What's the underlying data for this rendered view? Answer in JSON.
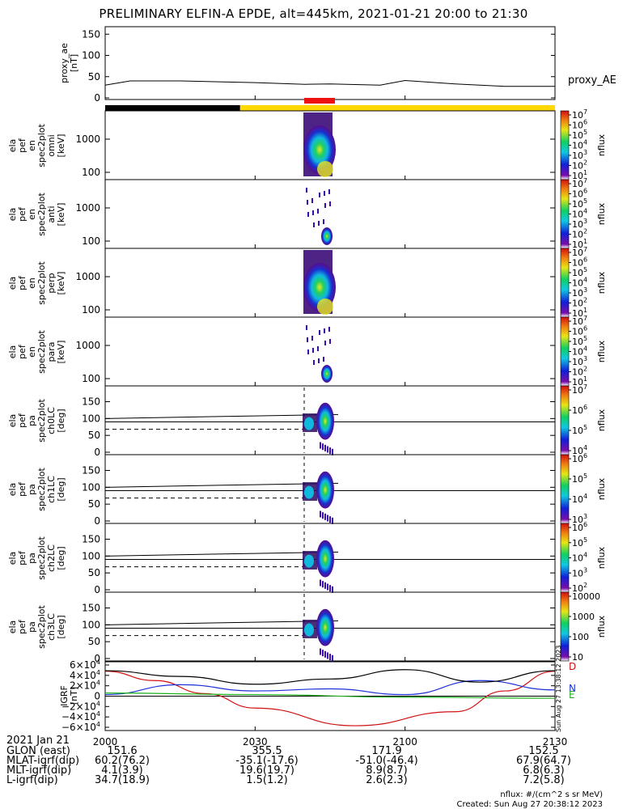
{
  "title": "PRELIMINARY ELFIN-A EPDE, alt=445km, 2021-01-21 20:00 to 21:30",
  "colors": {
    "black": "#000000",
    "yellow_bar": "#ffd800",
    "red_bar": "#ee1111",
    "b_D": "#d01010",
    "b_N": "#1c30d8",
    "b_E": "#1bb21b"
  },
  "panels": {
    "proxy_ae": {
      "ylabel": "proxy_ae\n[nT]",
      "legend": "proxy_AE",
      "yticks": [
        "150",
        "100",
        "50",
        "0"
      ]
    },
    "energy_labels": [
      "ela\npef\nen\nspec2plot\nomni\n[keV]",
      "ela\npef\nen\nspec2plot\nanti\n[keV]",
      "ela\npef\nen\nspec2plot\nperp\n[keV]",
      "ela\npef\nen\nspec2plot\npara\n[keV]"
    ],
    "energy_yticks": [
      "1000",
      "100"
    ],
    "pa_labels": [
      "ela\npef\npa\nspec2plot\nch0LC\n[deg]",
      "ela\npef\npa\nspec2plot\nch1LC\n[deg]",
      "ela\npef\npa\nspec2plot\nch2LC\n[deg]",
      "ela\npef\npa\nspec2plot\nch3LC\n[deg]"
    ],
    "pa_yticks": [
      "150",
      "100",
      "50",
      "0"
    ],
    "colorbar_label": "nflux",
    "colorbar_ticks": [
      [
        "10^7",
        "10^6",
        "10^5",
        "10^4",
        "10^3",
        "10^2",
        "10^1"
      ],
      [
        "10^7",
        "10^6",
        "10^5",
        "10^4",
        "10^3",
        "10^2",
        "10^1"
      ],
      [
        "10^7",
        "10^6",
        "10^5",
        "10^4",
        "10^3",
        "10^2",
        "10^1"
      ],
      [
        "10^7",
        "10^6",
        "10^5",
        "10^4",
        "10^3",
        "10^2",
        "10^1"
      ],
      [
        "10^7",
        "10^6",
        "10^5",
        "10^4"
      ],
      [
        "10^6",
        "10^5",
        "10^4",
        "10^3"
      ],
      [
        "10^6",
        "10^5",
        "10^4",
        "10^3",
        "10^2"
      ],
      [
        "10000",
        "1000",
        "100",
        "10"
      ]
    ],
    "igrf": {
      "ylabel": "IGRF\n[nT]",
      "yticks": [
        "6×10^4",
        "4×10^4",
        "2×10^4",
        "0",
        "−2×10^4",
        "−4×10^4",
        "−6×10^4"
      ],
      "components": [
        "D",
        "N",
        "E"
      ]
    }
  },
  "xaxis": {
    "date_label": "2021 Jan 21",
    "ticks": [
      "2000",
      "2030",
      "2100",
      "2130"
    ]
  },
  "ephemeris": {
    "row_labels": [
      "GLON (east)",
      "MLAT-igrf(dip)",
      "MLT-igrf(dip)",
      "L-igrf(dip)"
    ],
    "columns": [
      [
        "151.6",
        "60.2(76.2)",
        "4.1(3.9)",
        "34.7(18.9)"
      ],
      [
        "355.5",
        "-35.1(-17.6)",
        "19.6(19.7)",
        "1.5(1.2)"
      ],
      [
        "171.9",
        "-51.0(-46.4)",
        "8.9(8.7)",
        "2.6(2.3)"
      ],
      [
        "152.5",
        "67.9(64.7)",
        "6.8(6.3)",
        "7.2(5.8)"
      ]
    ]
  },
  "footer": {
    "units": "nflux: #/(cm^2 s sr MeV)",
    "created": "Created: Sun Aug 27 20:38:12 2023",
    "side_stamp": "Sun Aug 27 13:38:12 2023"
  },
  "chart_data": {
    "type": "line",
    "title": "PRELIMINARY ELFIN-A EPDE, alt=445km, 2021-01-21 20:00 to 21:30",
    "x_range": [
      "20:00",
      "21:30"
    ],
    "proxy_ae": {
      "name": "proxy_AE",
      "ylim": [
        0,
        160
      ],
      "x": [
        "20:00",
        "20:05",
        "20:15",
        "20:30",
        "20:40",
        "20:45",
        "20:55",
        "21:00",
        "21:10",
        "21:20",
        "21:30"
      ],
      "values": [
        30,
        40,
        40,
        36,
        32,
        33,
        30,
        41,
        33,
        27,
        27
      ]
    },
    "science_zone": {
      "x_start": "20:42",
      "x_end": "20:48",
      "night_bar_end": "20:27"
    },
    "igrf": {
      "ylim": [
        -60000,
        60000
      ],
      "series": [
        {
          "name": "D",
          "x": [
            "20:00",
            "20:10",
            "20:20",
            "20:30",
            "20:50",
            "21:10",
            "21:20",
            "21:30"
          ],
          "values": [
            48000,
            30000,
            5000,
            -23000,
            -57000,
            -30000,
            10000,
            48000
          ]
        },
        {
          "name": "N",
          "x": [
            "20:00",
            "20:15",
            "20:30",
            "20:45",
            "21:00",
            "21:15",
            "21:30"
          ],
          "values": [
            3000,
            22000,
            10000,
            14000,
            3000,
            30000,
            12000
          ]
        },
        {
          "name": "E",
          "x": [
            "20:00",
            "20:30",
            "21:00",
            "21:30"
          ],
          "values": [
            6000,
            3000,
            -2000,
            -4000
          ]
        },
        {
          "name": "total",
          "x": [
            "20:00",
            "20:15",
            "20:30",
            "20:45",
            "21:00",
            "21:15",
            "21:30"
          ],
          "values": [
            49000,
            38000,
            23000,
            33000,
            51000,
            27000,
            49000
          ]
        }
      ]
    }
  }
}
